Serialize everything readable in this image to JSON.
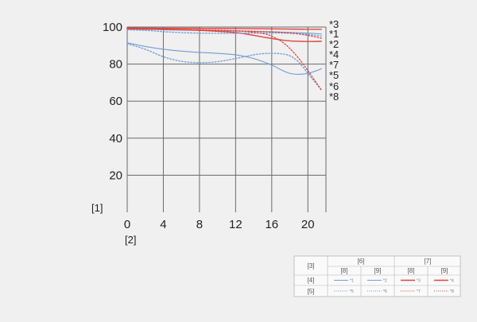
{
  "chart_data": {
    "type": "line",
    "xlim": [
      0,
      22
    ],
    "ylim": [
      0,
      100
    ],
    "x_ticks": [
      0,
      4,
      8,
      12,
      16,
      20
    ],
    "y_ticks": [
      20,
      40,
      60,
      80,
      100
    ],
    "grid": true,
    "y_axis_marker": "[1]",
    "x_axis_marker": "[2]",
    "colors": {
      "blue": "#6f9bd8",
      "red": "#e0443c",
      "grid": "#6a6a6a"
    },
    "series": [
      {
        "name": "*1",
        "color": "#6f9bd8",
        "dash": "solid",
        "x": [
          0,
          2,
          4,
          6,
          8,
          10,
          12,
          14,
          16,
          18,
          20,
          21.5
        ],
        "y": [
          98.8,
          98.7,
          98.5,
          98.3,
          98.2,
          98.0,
          97.8,
          97.6,
          97.4,
          97.1,
          96.7,
          96.3
        ]
      },
      {
        "name": "*2",
        "color": "#6f9bd8",
        "dash": "solid",
        "x": [
          0,
          2,
          4,
          6,
          8,
          10,
          12,
          14,
          16,
          17,
          18,
          19,
          20,
          21,
          21.5
        ],
        "y": [
          91.5,
          89.5,
          88,
          87,
          86.3,
          85.8,
          85,
          83,
          79.5,
          77,
          75,
          74.5,
          75,
          76.5,
          77.5
        ]
      },
      {
        "name": "*3",
        "color": "#e0443c",
        "dash": "solid",
        "x": [
          0,
          4,
          8,
          12,
          16,
          20,
          21.5
        ],
        "y": [
          99.5,
          99.4,
          99.3,
          99.2,
          99.0,
          98.8,
          98.8
        ]
      },
      {
        "name": "*4",
        "color": "#e0443c",
        "dash": "solid",
        "x": [
          0,
          4,
          8,
          12,
          14,
          16,
          18,
          20,
          21.5
        ],
        "y": [
          99.2,
          98.9,
          98.2,
          97,
          95.5,
          93.8,
          92.5,
          92.2,
          92.3
        ]
      },
      {
        "name": "*5",
        "color": "#6f9bd8",
        "dash": "dot",
        "x": [
          0,
          2,
          4,
          6,
          8,
          10,
          12,
          14,
          16,
          18,
          20,
          21.5
        ],
        "y": [
          98.5,
          98.2,
          97.5,
          97,
          96.7,
          96.6,
          96.6,
          96.7,
          96.8,
          96.6,
          96,
          95.2
        ]
      },
      {
        "name": "*6",
        "color": "#6f9bd8",
        "dash": "dot",
        "x": [
          0,
          2,
          4,
          6,
          8,
          10,
          12,
          14,
          15,
          16,
          17,
          18,
          19,
          20,
          21.5
        ],
        "y": [
          91,
          88,
          84,
          81.5,
          80.8,
          81.3,
          83,
          85,
          85.6,
          85.8,
          85.6,
          84.5,
          81,
          75,
          66
        ]
      },
      {
        "name": "*7",
        "color": "#e0443c",
        "dash": "dot",
        "x": [
          0,
          4,
          8,
          12,
          16,
          18,
          20,
          21.5
        ],
        "y": [
          99.0,
          98.7,
          98.4,
          98.0,
          97.4,
          96.8,
          95.5,
          94
        ]
      },
      {
        "name": "*8",
        "color": "#e0443c",
        "dash": "dot",
        "x": [
          0,
          4,
          8,
          12,
          15,
          16,
          17,
          18,
          19,
          20,
          21,
          21.5
        ],
        "y": [
          99.2,
          98.8,
          98.5,
          98,
          96.5,
          95,
          92.5,
          88.5,
          83,
          76.5,
          69.5,
          66
        ]
      }
    ],
    "right_labels": [
      "*3",
      "*1",
      "*2",
      "*4",
      "*7",
      "*5",
      "*6",
      "*8"
    ]
  },
  "legend": {
    "corner": "[3]",
    "group_a": "[6]",
    "group_b": "[7]",
    "sub_a1": "[8]",
    "sub_a2": "[9]",
    "sub_b1": "[8]",
    "sub_b2": "[9]",
    "row1": "[4]",
    "row2": "[5]",
    "entries": [
      "*1",
      "*2",
      "*3",
      "*4",
      "*5",
      "*6",
      "*7",
      "*8"
    ]
  }
}
